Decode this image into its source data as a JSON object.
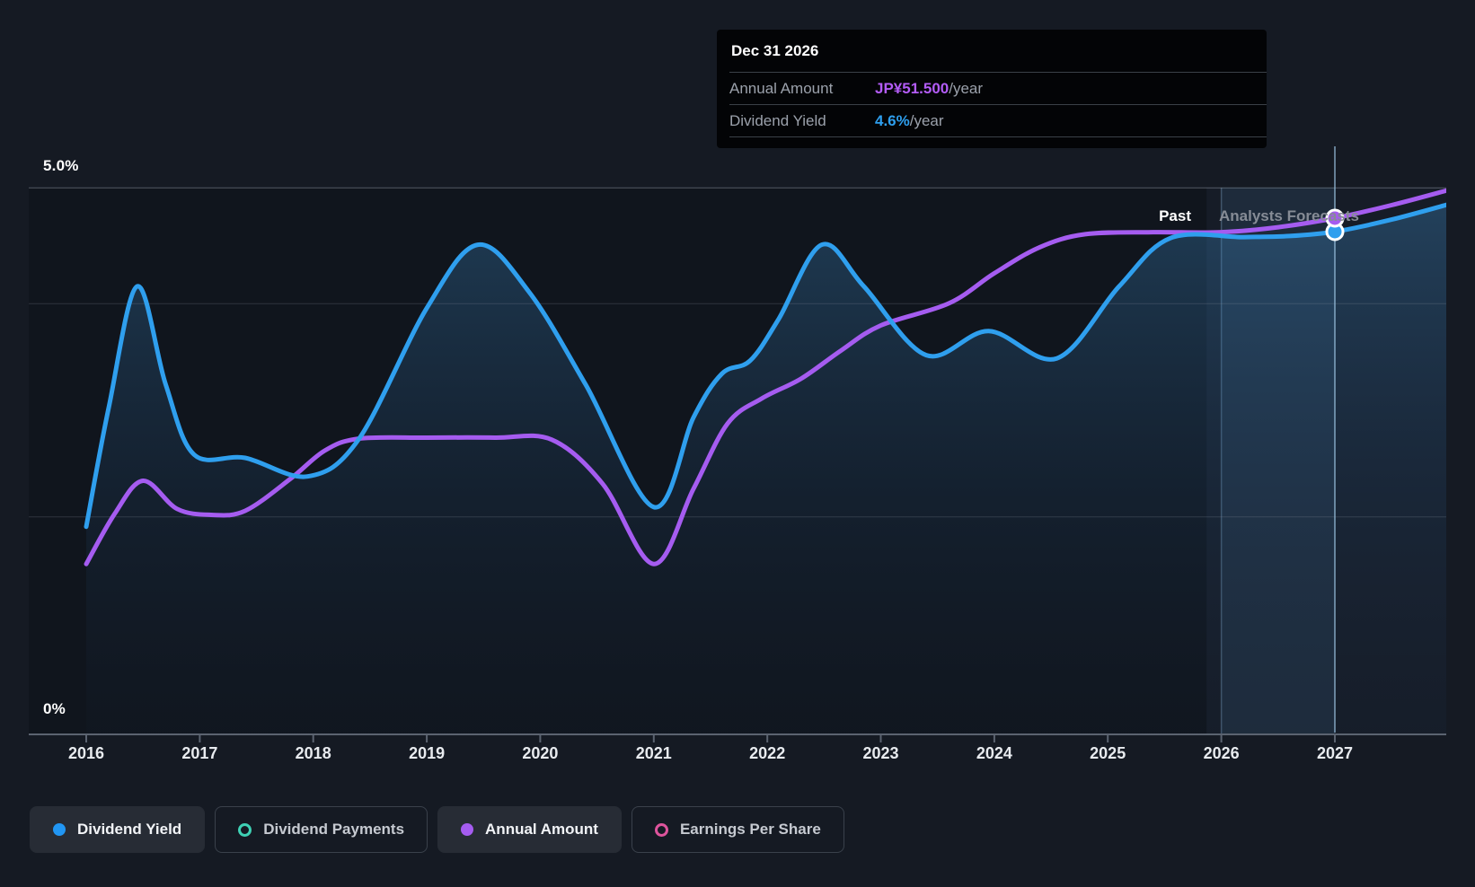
{
  "labels": {
    "y_top": "5.0%",
    "y_bottom": "0%",
    "past": "Past",
    "forecasts": "Analysts Forecasts"
  },
  "x_axis": {
    "years": [
      "2016",
      "2017",
      "2018",
      "2019",
      "2020",
      "2021",
      "2022",
      "2023",
      "2024",
      "2025",
      "2026",
      "2027"
    ]
  },
  "tooltip": {
    "date": "Dec 31 2026",
    "rows": [
      {
        "label": "Annual Amount",
        "value": "JP¥51.500",
        "suffix": "/year",
        "color": "#b35cf7"
      },
      {
        "label": "Dividend Yield",
        "value": "4.6%",
        "suffix": "/year",
        "color": "#2e9fee"
      }
    ]
  },
  "legend": [
    {
      "label": "Dividend Yield",
      "color": "#2196f3",
      "variant": "filled",
      "active": true
    },
    {
      "label": "Dividend Payments",
      "color": "#3ed0b4",
      "variant": "hollow",
      "active": false
    },
    {
      "label": "Annual Amount",
      "color": "#a55cf0",
      "variant": "filled",
      "active": true
    },
    {
      "label": "Earnings Per Share",
      "color": "#dd549c",
      "variant": "hollow",
      "active": false
    }
  ],
  "chart_data": {
    "type": "line",
    "x_domain": [
      2016,
      2028
    ],
    "y_axis_pct": {
      "min": 0,
      "max": 5.0,
      "labeled_ticks": [
        "5.0%",
        "0%"
      ]
    },
    "gridlines_pct": [
      5.0,
      3.94,
      1.99
    ],
    "forecast_start": 2025.87,
    "highlight_interval": [
      2026,
      2027
    ],
    "hover": {
      "date": "Dec 31 2026",
      "x_year": 2027,
      "annual_amount_yen": 51.5,
      "dividend_yield_pct": 4.6
    },
    "legend_position": "bottom",
    "series": [
      {
        "name": "Dividend Yield",
        "unit": "%",
        "color": "#2f9fee",
        "area_fill": true,
        "points": [
          [
            2016.0,
            1.9
          ],
          [
            2016.2,
            3.0
          ],
          [
            2016.45,
            4.1
          ],
          [
            2016.7,
            3.2
          ],
          [
            2016.95,
            2.56
          ],
          [
            2017.4,
            2.53
          ],
          [
            2017.95,
            2.36
          ],
          [
            2018.4,
            2.7
          ],
          [
            2019.0,
            3.9
          ],
          [
            2019.45,
            4.48
          ],
          [
            2019.9,
            4.05
          ],
          [
            2020.4,
            3.2
          ],
          [
            2021.0,
            2.08
          ],
          [
            2021.35,
            2.9
          ],
          [
            2021.6,
            3.3
          ],
          [
            2021.85,
            3.42
          ],
          [
            2022.1,
            3.8
          ],
          [
            2022.48,
            4.48
          ],
          [
            2022.85,
            4.1
          ],
          [
            2023.4,
            3.47
          ],
          [
            2023.95,
            3.69
          ],
          [
            2024.55,
            3.44
          ],
          [
            2025.1,
            4.1
          ],
          [
            2025.55,
            4.54
          ],
          [
            2026.2,
            4.55
          ],
          [
            2026.6,
            4.56
          ],
          [
            2027.0,
            4.6
          ],
          [
            2027.5,
            4.71
          ],
          [
            2028.0,
            4.85
          ]
        ]
      },
      {
        "name": "Annual Amount",
        "unit": "JP¥/year",
        "color": "#a55cf0",
        "area_fill": false,
        "points": [
          [
            2016.0,
            17.0
          ],
          [
            2016.25,
            22.0
          ],
          [
            2016.5,
            25.3
          ],
          [
            2016.8,
            22.5
          ],
          [
            2017.1,
            21.9
          ],
          [
            2017.4,
            22.3
          ],
          [
            2017.8,
            25.5
          ],
          [
            2018.1,
            28.3
          ],
          [
            2018.4,
            29.5
          ],
          [
            2019.0,
            29.6
          ],
          [
            2019.6,
            29.6
          ],
          [
            2020.1,
            29.4
          ],
          [
            2020.55,
            25.0
          ],
          [
            2021.0,
            17.0
          ],
          [
            2021.35,
            24.5
          ],
          [
            2021.65,
            31.0
          ],
          [
            2021.95,
            33.5
          ],
          [
            2022.3,
            35.5
          ],
          [
            2022.65,
            38.3
          ],
          [
            2023.0,
            40.8
          ],
          [
            2023.6,
            43.0
          ],
          [
            2024.0,
            46.0
          ],
          [
            2024.4,
            48.6
          ],
          [
            2024.8,
            49.9
          ],
          [
            2025.4,
            50.1
          ],
          [
            2026.0,
            50.1
          ],
          [
            2026.5,
            50.6
          ],
          [
            2027.0,
            51.5
          ],
          [
            2027.5,
            52.8
          ],
          [
            2028.0,
            54.3
          ]
        ]
      }
    ]
  }
}
